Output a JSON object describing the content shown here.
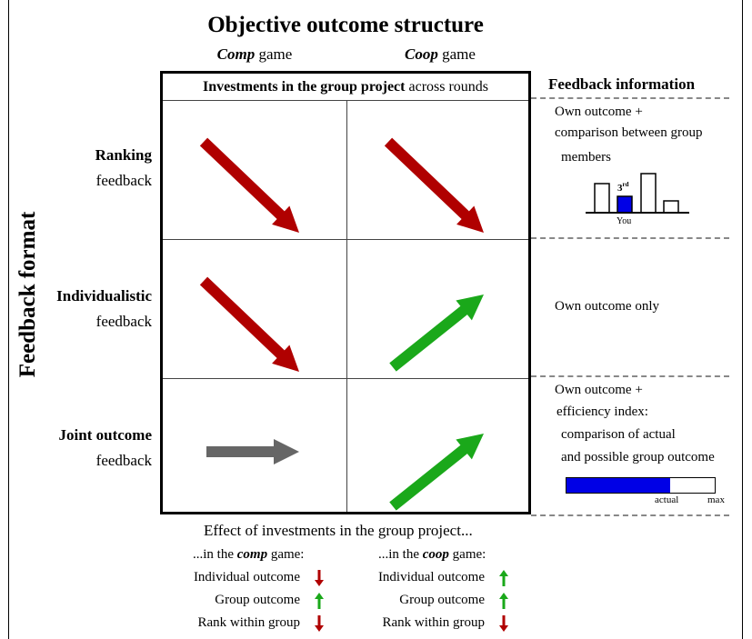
{
  "title": "Objective outcome structure",
  "columns": [
    {
      "bold": "Comp",
      "rest": " game"
    },
    {
      "bold": "Coop",
      "rest": " game"
    }
  ],
  "grid_header": {
    "bold": "Investments in the group project",
    "rest": " across rounds"
  },
  "y_axis_label": "Feedback format",
  "rows": [
    {
      "bold": "Ranking",
      "rest": "feedback"
    },
    {
      "bold": "Individualistic",
      "rest": "feedback"
    },
    {
      "bold": "Joint outcome",
      "rest": "feedback"
    }
  ],
  "cells": [
    {
      "row": 0,
      "col": 0,
      "direction": "down",
      "color": "#b00000"
    },
    {
      "row": 0,
      "col": 1,
      "direction": "down",
      "color": "#b00000"
    },
    {
      "row": 1,
      "col": 0,
      "direction": "down",
      "color": "#b00000"
    },
    {
      "row": 1,
      "col": 1,
      "direction": "up",
      "color": "#1aa81a"
    },
    {
      "row": 2,
      "col": 0,
      "direction": "flat",
      "color": "#666666"
    },
    {
      "row": 2,
      "col": 1,
      "direction": "up",
      "color": "#1aa81a"
    }
  ],
  "feedback_info": {
    "heading": "Feedback information",
    "ranking_lines": [
      "Own outcome +",
      "comparison between group",
      "members"
    ],
    "ranking_rank": "3",
    "ranking_rank_sup": "rd",
    "ranking_you": "You",
    "individualistic": "Own outcome only",
    "joint_lines": [
      "Own outcome +",
      "efficiency index:",
      "comparison of actual",
      "and possible group outcome"
    ],
    "efficiency_actual": "actual",
    "efficiency_max": "max",
    "efficiency_fill": 0.7
  },
  "effects": {
    "title": "Effect of investments in the group project...",
    "comp_head": {
      "pre": "...in the ",
      "bold": "comp",
      "post": " game:"
    },
    "coop_head": {
      "pre": "...in the ",
      "bold": "coop",
      "post": " game:"
    },
    "items": [
      "Individual outcome",
      "Group outcome",
      "Rank within group"
    ],
    "comp_dirs": [
      "down",
      "up",
      "down"
    ],
    "coop_dirs": [
      "up",
      "up",
      "down"
    ]
  },
  "colors": {
    "red": "#b00000",
    "green": "#1aa81a",
    "gray": "#666666",
    "blue": "#0000e6"
  }
}
